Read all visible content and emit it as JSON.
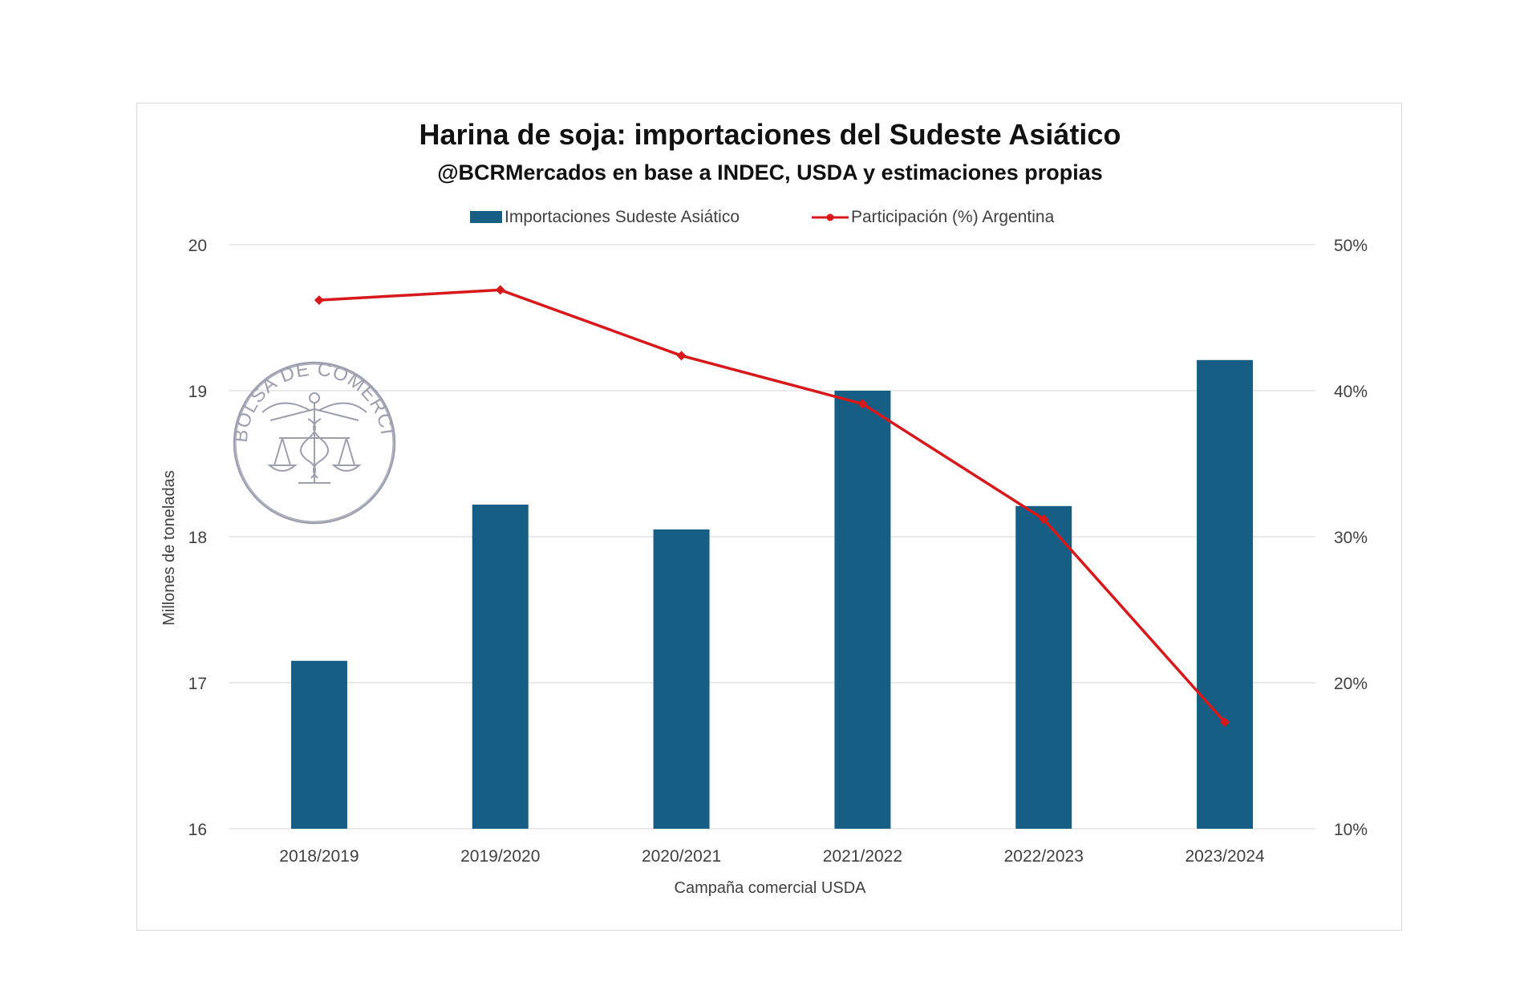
{
  "chart_data": {
    "type": "bar+line",
    "title": "Harina de soja: importaciones del Sudeste Asiático",
    "subtitle": "@BCRMercados  en base a INDEC, USDA y estimaciones propias",
    "xlabel": "Campaña comercial USDA",
    "ylabel": "Millones de toneladas",
    "categories": [
      "2018/2019",
      "2019/2020",
      "2020/2021",
      "2021/2022",
      "2022/2023",
      "2023/2024"
    ],
    "ylim": [
      16,
      20
    ],
    "yticks": [
      "16",
      "17",
      "18",
      "19",
      "20"
    ],
    "y2lim": [
      10,
      50
    ],
    "y2ticks": [
      "10%",
      "20%",
      "30%",
      "40%",
      "50%"
    ],
    "grid": true,
    "legend_position": "top-center",
    "series": [
      {
        "name": "Importaciones Sudeste Asiático",
        "type": "bar",
        "axis": "left",
        "color": "#165E83",
        "values": [
          17.15,
          18.22,
          18.05,
          19.0,
          18.21,
          19.21
        ]
      },
      {
        "name": "Participación (%) Argentina",
        "type": "line",
        "axis": "right",
        "color": "#D7191C",
        "values": [
          46.2,
          46.9,
          42.4,
          39.1,
          31.2,
          17.3
        ]
      }
    ]
  },
  "watermark": {
    "text": "BOLSA DE COMERCIO DE ROSARIO",
    "color": "#8a8fa0"
  }
}
